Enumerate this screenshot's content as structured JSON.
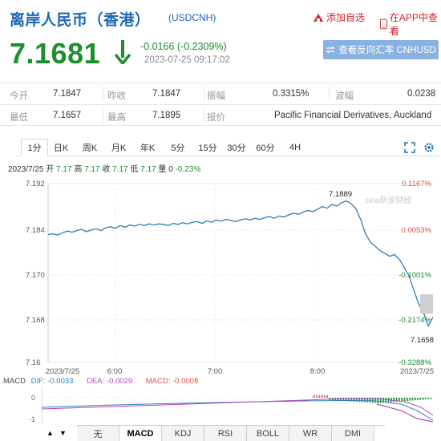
{
  "header": {
    "title": "离岸人民币（香港）",
    "code": "(USDCNH)",
    "add_favorite": "添加自选",
    "in_app": "在APP中查看"
  },
  "quote": {
    "price": "7.1681",
    "change": "-0.0166 (-0.2309%)",
    "timestamp": "2023-07-25 09:17:02",
    "reverse_button": "查看反向汇率 CNHUSD",
    "color_down": "#1c8f2f"
  },
  "stats": {
    "row1": {
      "open_label": "今开",
      "open": "7.1847",
      "prev_label": "昨收",
      "prev": "7.1847",
      "amp_label": "振幅",
      "amp": "0.3315%",
      "vol_label": "波幅",
      "vol": "0.0238"
    },
    "row2": {
      "low_label": "最低",
      "low": "7.1657",
      "high_label": "最高",
      "high": "7.1895",
      "quote_label": "报价",
      "quote": "Pacific Financial Derivatives, Auckland"
    }
  },
  "tabs": [
    "1分",
    "日K",
    "周K",
    "月K",
    "年K",
    "5分",
    "15分",
    "30分",
    "60分",
    "4H"
  ],
  "active_tab": "1分",
  "info_line": {
    "date": "2023/7/25",
    "open_label": "开",
    "open": "7.17",
    "high_label": "高",
    "high": "7.17",
    "close_label": "收",
    "close": "7.17",
    "low_label": "低",
    "low": "7.17",
    "vol_label": "量",
    "vol": "0",
    "pct": "-0.23%"
  },
  "chart_data": {
    "type": "line",
    "y_ticks_left": [
      "7.192",
      "7.184",
      "7.170",
      "7.168",
      "7.16"
    ],
    "y_ticks_right": [
      "0.1167%",
      "0.0053%",
      "-0.1001%",
      "-0.2174%",
      "-0.3288%"
    ],
    "x_ticks": [
      "2023/7/25",
      "6:00",
      "7:00",
      "8:00",
      "2023/7/25"
    ],
    "annotations": [
      "7.1889",
      "7.1658"
    ],
    "watermark": "sina新浪财经",
    "series": [
      {
        "color": "#2d7fb8",
        "x": [
          0,
          6,
          12,
          18,
          24,
          30,
          36,
          42,
          48,
          54,
          60,
          66,
          72,
          78,
          84,
          90,
          96,
          102,
          108,
          114,
          120,
          126,
          132,
          138,
          144,
          150,
          156,
          162,
          168,
          174,
          180,
          186,
          192,
          198,
          204,
          210,
          216,
          222,
          228,
          234,
          240,
          246,
          252,
          258,
          264,
          270,
          276,
          282,
          288,
          294,
          300,
          306,
          312,
          318,
          324,
          330,
          336,
          342,
          348,
          354,
          360,
          366,
          372,
          378,
          384,
          390,
          396,
          402,
          408,
          414,
          420,
          426,
          432,
          438,
          444,
          450,
          456,
          462,
          468,
          474,
          480
        ],
        "y": [
          7.1829,
          7.183,
          7.1828,
          7.1832,
          7.1835,
          7.1833,
          7.1836,
          7.1838,
          7.1834,
          7.1837,
          7.1839,
          7.1836,
          7.1841,
          7.1843,
          7.184,
          7.1845,
          7.1842,
          7.1846,
          7.1844,
          7.1847,
          7.1845,
          7.1848,
          7.1846,
          7.1848,
          7.1847,
          7.1845,
          7.1849,
          7.1847,
          7.185,
          7.1848,
          7.1851,
          7.1852,
          7.1849,
          7.1853,
          7.1851,
          7.1855,
          7.1853,
          7.1856,
          7.1854,
          7.1852,
          7.1855,
          7.1857,
          7.1855,
          7.1858,
          7.1856,
          7.1859,
          7.1861,
          7.1858,
          7.1862,
          7.186,
          7.1864,
          7.1867,
          7.1865,
          7.1869,
          7.1872,
          7.187,
          7.1874,
          7.1879,
          7.1876,
          7.1883,
          7.188,
          7.1886,
          7.1889,
          7.1884,
          7.1875,
          7.1855,
          7.183,
          7.1815,
          7.1808,
          7.18,
          7.1795,
          7.179,
          7.1793,
          7.1785,
          7.177,
          7.1755,
          7.173,
          7.1705,
          7.169,
          7.1665,
          7.1681
        ]
      }
    ],
    "ylim": [
      7.16,
      7.192
    ]
  },
  "macd": {
    "label": "MACD",
    "dif": "DIF: -0.0033",
    "dea": "DEA: -0.0029",
    "macd": "MACD: -0.0008",
    "y_ticks": [
      "0",
      "-1"
    ]
  },
  "bottom_tabs": [
    "无",
    "MACD",
    "KDJ",
    "RSI",
    "BOLL",
    "WR",
    "DMI"
  ],
  "active_bottom_tab": "MACD",
  "nav": {
    "up": "▲",
    "down": "▼"
  }
}
